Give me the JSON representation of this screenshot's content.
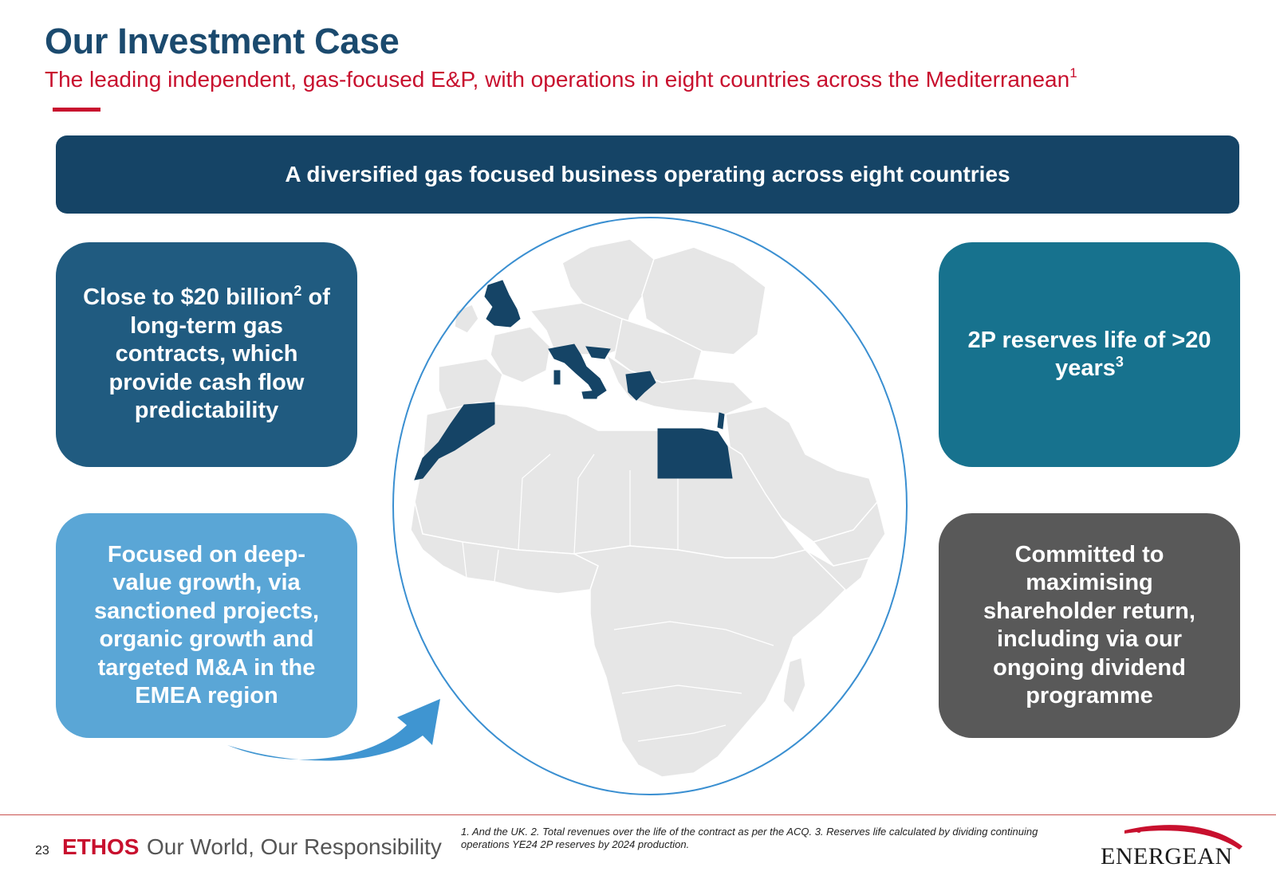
{
  "header": {
    "title": "Our Investment Case",
    "subtitle": "The leading independent, gas-focused E&P, with operations in eight countries across the Mediterranean",
    "subtitle_footnote": "1"
  },
  "banner": {
    "text": "A diversified gas focused business operating across eight countries"
  },
  "boxes": {
    "top_left": {
      "text": "Close to $20 billion",
      "sup": "2",
      "text2": "of long-term gas contracts, which provide cash flow predictability"
    },
    "bottom_left": {
      "text": "Focused on deep-value growth, via sanctioned projects, organic growth and targeted M&A in the EMEA region"
    },
    "top_right": {
      "text": "2P reserves life of >20 years",
      "sup": "3"
    },
    "bottom_right": {
      "text": "Committed to maximising shareholder return, including via our ongoing dividend programme"
    }
  },
  "map": {
    "highlighted_countries": [
      "United Kingdom",
      "Italy",
      "Croatia",
      "Greece",
      "Morocco",
      "Egypt",
      "Israel"
    ],
    "highlight_color": "#154466",
    "land_color": "#e6e6e6"
  },
  "footer": {
    "page_number": "23",
    "ethos_word": "ETHOS",
    "ethos_tagline": "Our World, Our Responsibility",
    "footnote": "1. And the UK. 2. Total revenues over the life of the contract as per the ACQ. 3. Reserves life calculated by dividing continuing operations YE24 2P reserves by 2024 production.",
    "logo_text": "Energean"
  },
  "colors": {
    "title": "#1b4a6e",
    "accent_red": "#c8102e",
    "banner": "#154466",
    "box_top_left": "#205b80",
    "box_bottom_left": "#5aa6d6",
    "box_top_right": "#17728e",
    "box_bottom_right": "#595959"
  }
}
